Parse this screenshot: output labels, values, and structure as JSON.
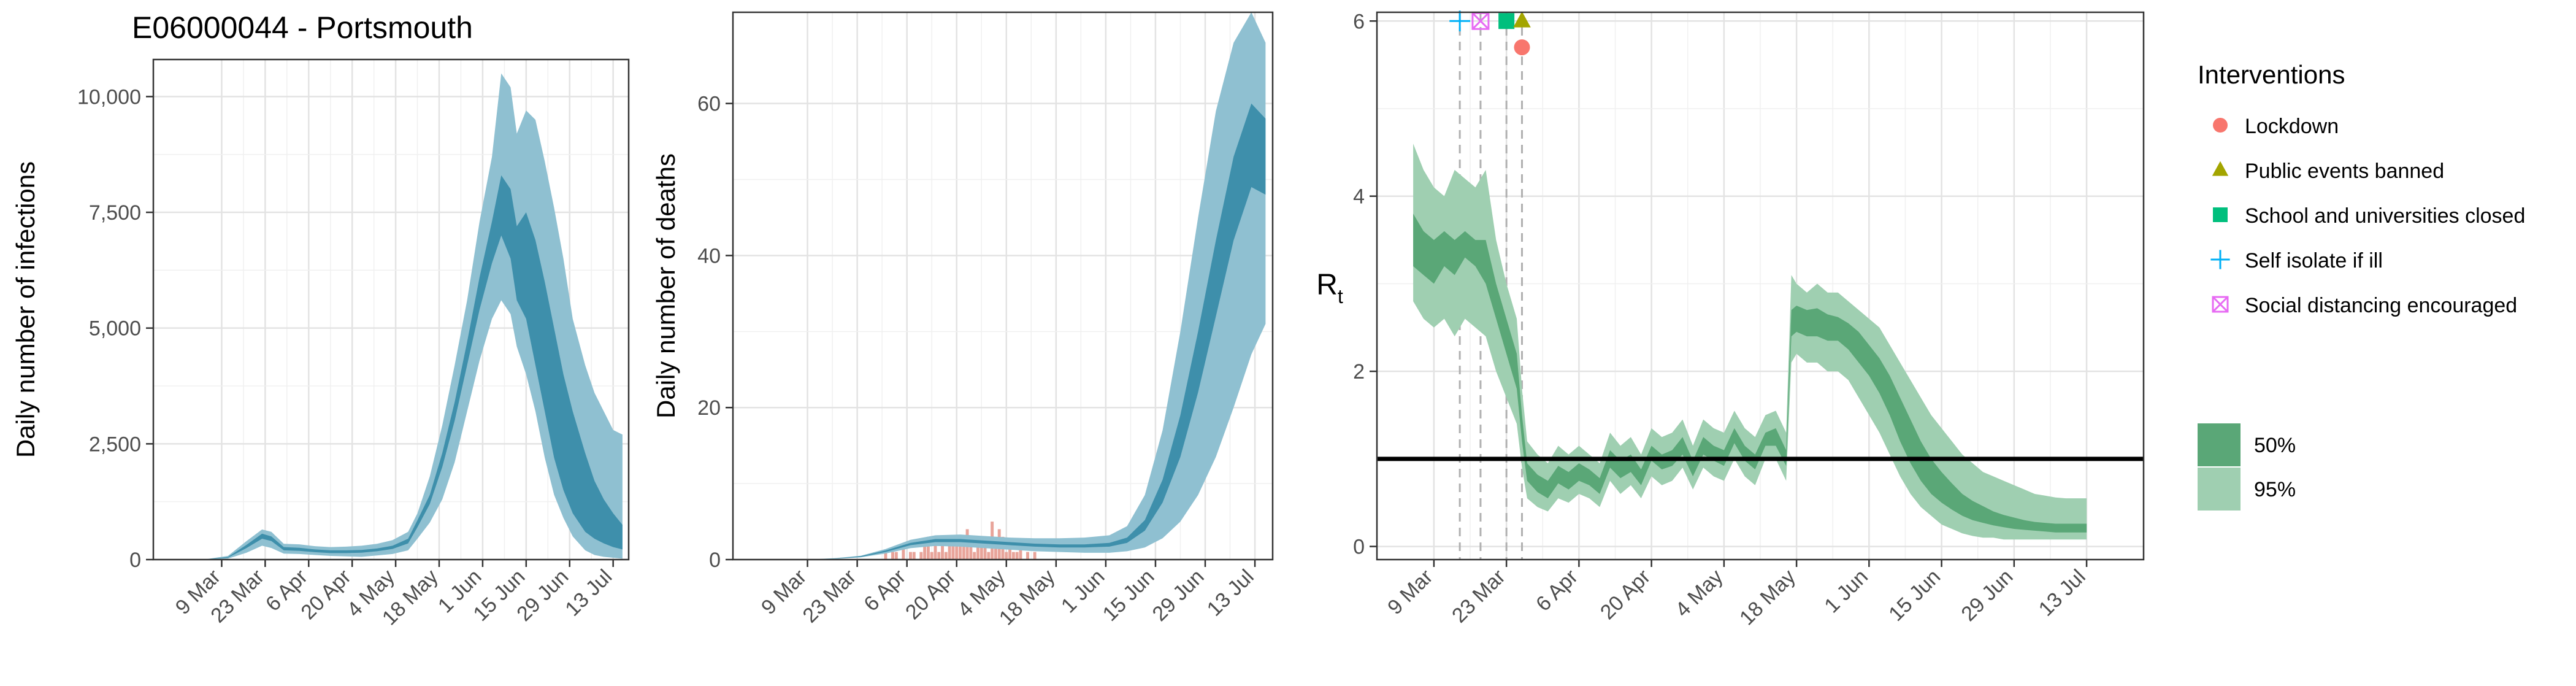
{
  "title": "E06000044 - Portsmouth",
  "colors": {
    "infections_outer": "#8fc0d1",
    "infections_inner": "#3e8fab",
    "deaths_bars": "#e8a49a",
    "rt_outer": "#9fcfb1",
    "rt_inner": "#5aa777",
    "rt_line": "#000000",
    "lockdown": "#F8766D",
    "public_events": "#A3A500",
    "schools": "#00BF7D",
    "self_isolate": "#00B0F6",
    "social_distancing": "#E76BF3"
  },
  "legend": {
    "interventions_title": "Interventions",
    "interventions": [
      {
        "label": "Lockdown",
        "shape": "circle",
        "color": "#F8766D"
      },
      {
        "label": "Public events banned",
        "shape": "triangle",
        "color": "#A3A500"
      },
      {
        "label": "School and universities closed",
        "shape": "square",
        "color": "#00BF7D"
      },
      {
        "label": "Self isolate if ill",
        "shape": "plus",
        "color": "#00B0F6"
      },
      {
        "label": "Social distancing encouraged",
        "shape": "boxx",
        "color": "#E76BF3"
      }
    ],
    "ci": [
      {
        "label": "50%",
        "color": "#5aa777"
      },
      {
        "label": "95%",
        "color": "#9fcfb1"
      }
    ]
  },
  "chart_data": [
    {
      "type": "area",
      "ylabel": "Daily number of infections",
      "x_ticks": [
        "9 Mar",
        "23 Mar",
        "6 Apr",
        "20 Apr",
        "4 May",
        "18 May",
        "1 Jun",
        "15 Jun",
        "29 Jun",
        "13 Jul"
      ],
      "y_ticks": [
        "0",
        "2,500",
        "5,000",
        "7,500",
        "10,000"
      ],
      "ylim": [
        0,
        10800
      ],
      "x_days": [
        -6,
        2,
        8,
        13,
        16,
        20,
        25,
        30,
        35,
        40,
        45,
        50,
        55,
        60,
        63,
        67,
        71,
        75,
        79,
        83,
        87,
        90,
        93,
        95,
        98,
        101,
        104,
        107,
        110,
        113,
        117,
        120,
        123,
        126,
        129
      ],
      "series": [
        {
          "name": "95%",
          "low": [
            0,
            20,
            150,
            300,
            250,
            130,
            120,
            100,
            80,
            70,
            60,
            90,
            120,
            200,
            450,
            800,
            1300,
            2100,
            3200,
            4300,
            5200,
            5600,
            5300,
            4600,
            4000,
            3200,
            2200,
            1400,
            900,
            500,
            200,
            100,
            60,
            40,
            20
          ],
          "high": [
            0,
            80,
            400,
            650,
            600,
            340,
            330,
            290,
            270,
            280,
            300,
            340,
            420,
            600,
            1000,
            1800,
            2900,
            4200,
            5600,
            7300,
            8700,
            10500,
            10200,
            9200,
            9700,
            9500,
            8600,
            7600,
            6500,
            5200,
            4200,
            3600,
            3200,
            2800,
            2700
          ]
        },
        {
          "name": "50%",
          "low": [
            0,
            40,
            250,
            450,
            400,
            200,
            190,
            160,
            140,
            140,
            150,
            180,
            230,
            350,
            700,
            1200,
            2000,
            3000,
            4200,
            5400,
            6400,
            7000,
            6500,
            5600,
            5200,
            4200,
            3200,
            2200,
            1500,
            1000,
            600,
            450,
            350,
            270,
            220
          ],
          "high": [
            0,
            55,
            320,
            560,
            500,
            270,
            255,
            220,
            200,
            200,
            210,
            240,
            300,
            450,
            850,
            1400,
            2300,
            3400,
            4700,
            6100,
            7300,
            8300,
            8000,
            7200,
            7500,
            6900,
            6000,
            5000,
            4000,
            3200,
            2300,
            1700,
            1300,
            1000,
            750
          ]
        }
      ]
    },
    {
      "type": "area",
      "ylabel": "Daily number of deaths",
      "x_ticks": [
        "9 Mar",
        "23 Mar",
        "6 Apr",
        "20 Apr",
        "4 May",
        "18 May",
        "1 Jun",
        "15 Jun",
        "29 Jun",
        "13 Jul"
      ],
      "y_ticks": [
        "0",
        "20",
        "40",
        "60"
      ],
      "ylim": [
        0,
        72
      ],
      "x_days": [
        -6,
        0,
        8,
        15,
        22,
        29,
        36,
        43,
        50,
        57,
        64,
        71,
        78,
        85,
        90,
        95,
        100,
        105,
        110,
        115,
        120,
        125,
        129
      ],
      "bars": {
        "x_days": [
          22,
          24,
          25,
          27,
          29,
          30,
          32,
          33,
          34,
          35,
          36,
          37,
          38,
          39,
          40,
          41,
          42,
          43,
          44,
          45,
          46,
          47,
          48,
          49,
          50,
          51,
          52,
          53,
          54,
          55,
          56,
          57,
          58,
          59,
          60,
          62,
          64
        ],
        "values": [
          1,
          1,
          1,
          2,
          1,
          1,
          1,
          2,
          3,
          1,
          2,
          1,
          3,
          1,
          3,
          2,
          2,
          3,
          2,
          4,
          2,
          1,
          3,
          2,
          2,
          1,
          5,
          2,
          4,
          3,
          1,
          2,
          1,
          1,
          2,
          1,
          1
        ]
      },
      "series": [
        {
          "name": "95%",
          "low": [
            0,
            0,
            0.1,
            0.3,
            0.8,
            1.5,
            1.8,
            1.7,
            1.5,
            1.3,
            1.1,
            1.0,
            0.9,
            0.9,
            1.1,
            1.6,
            2.8,
            5.0,
            8.5,
            13.5,
            20,
            27,
            31
          ],
          "high": [
            0,
            0,
            0.2,
            0.5,
            1.4,
            2.6,
            3.2,
            3.3,
            3.1,
            2.9,
            2.8,
            2.8,
            2.9,
            3.2,
            4.4,
            8.5,
            17,
            30,
            45,
            59,
            68,
            72,
            68
          ]
        },
        {
          "name": "50%",
          "low": [
            0,
            0,
            0.12,
            0.35,
            1.0,
            1.9,
            2.3,
            2.3,
            2.1,
            1.9,
            1.7,
            1.6,
            1.6,
            1.7,
            2.2,
            3.8,
            7.5,
            13.5,
            22,
            32,
            42,
            49,
            48
          ],
          "high": [
            0,
            0,
            0.15,
            0.45,
            1.2,
            2.2,
            2.7,
            2.7,
            2.5,
            2.3,
            2.1,
            2.0,
            2.0,
            2.2,
            2.9,
            5.2,
            10.5,
            19,
            30,
            42,
            53,
            60,
            58
          ]
        }
      ]
    },
    {
      "type": "area",
      "ylabel": "R",
      "ylabel_sub": "t",
      "x_ticks": [
        "9 Mar",
        "23 Mar",
        "6 Apr",
        "20 Apr",
        "4 May",
        "18 May",
        "1 Jun",
        "15 Jun",
        "29 Jun",
        "13 Jul"
      ],
      "y_ticks": [
        "0",
        "2",
        "4",
        "6"
      ],
      "ylim": [
        0,
        6.1
      ],
      "reference_line": 1,
      "intervention_days": [
        5,
        9,
        14,
        17,
        17
      ],
      "x_days": [
        -4,
        -2,
        0,
        2,
        4,
        6,
        8,
        10,
        12,
        14,
        16,
        17,
        18,
        20,
        22,
        24,
        26,
        28,
        30,
        32,
        34,
        36,
        38,
        40,
        42,
        44,
        46,
        48,
        50,
        52,
        54,
        56,
        58,
        60,
        62,
        64,
        66,
        68,
        69,
        70,
        72,
        74,
        76,
        78,
        80,
        82,
        84,
        86,
        88,
        90,
        92,
        94,
        96,
        98,
        100,
        102,
        104,
        106,
        108,
        110,
        112,
        114,
        116,
        118,
        120,
        122,
        124,
        126
      ],
      "series": [
        {
          "name": "95%",
          "low": [
            2.8,
            2.6,
            2.5,
            2.6,
            2.4,
            2.6,
            2.5,
            2.4,
            2.0,
            1.7,
            1.4,
            0.9,
            0.55,
            0.45,
            0.4,
            0.55,
            0.5,
            0.6,
            0.55,
            0.45,
            0.75,
            0.6,
            0.7,
            0.55,
            0.8,
            0.7,
            0.75,
            0.9,
            0.65,
            0.9,
            0.8,
            0.75,
            1.0,
            0.8,
            0.7,
            1.0,
            1.0,
            0.75,
            2.1,
            2.2,
            2.1,
            2.1,
            2.0,
            2.0,
            1.9,
            1.7,
            1.5,
            1.3,
            1.05,
            0.8,
            0.6,
            0.45,
            0.35,
            0.25,
            0.2,
            0.15,
            0.12,
            0.1,
            0.1,
            0.08,
            0.08,
            0.08,
            0.08,
            0.08,
            0.08,
            0.08,
            0.08,
            0.08
          ],
          "high": [
            4.6,
            4.3,
            4.1,
            4.0,
            4.3,
            4.2,
            4.1,
            4.3,
            3.5,
            3.0,
            2.6,
            1.8,
            1.2,
            1.05,
            0.95,
            1.15,
            1.05,
            1.15,
            1.05,
            0.95,
            1.3,
            1.15,
            1.25,
            1.05,
            1.35,
            1.25,
            1.3,
            1.45,
            1.15,
            1.45,
            1.35,
            1.3,
            1.55,
            1.35,
            1.25,
            1.5,
            1.55,
            1.3,
            3.1,
            3.0,
            2.9,
            3.0,
            2.9,
            2.9,
            2.8,
            2.7,
            2.6,
            2.5,
            2.3,
            2.1,
            1.9,
            1.7,
            1.5,
            1.35,
            1.2,
            1.05,
            0.95,
            0.85,
            0.8,
            0.75,
            0.7,
            0.65,
            0.6,
            0.58,
            0.56,
            0.55,
            0.55,
            0.55
          ]
        },
        {
          "name": "50%",
          "low": [
            3.2,
            3.1,
            3.0,
            3.2,
            3.1,
            3.3,
            3.2,
            3.0,
            2.6,
            2.2,
            1.8,
            1.2,
            0.75,
            0.62,
            0.55,
            0.72,
            0.65,
            0.75,
            0.7,
            0.6,
            0.9,
            0.78,
            0.85,
            0.7,
            0.98,
            0.88,
            0.92,
            1.05,
            0.8,
            1.05,
            0.98,
            0.92,
            1.18,
            0.98,
            0.88,
            1.15,
            1.15,
            0.92,
            2.4,
            2.45,
            2.4,
            2.4,
            2.35,
            2.35,
            2.25,
            2.1,
            1.95,
            1.75,
            1.5,
            1.2,
            0.95,
            0.75,
            0.6,
            0.5,
            0.42,
            0.35,
            0.3,
            0.27,
            0.24,
            0.22,
            0.2,
            0.19,
            0.18,
            0.17,
            0.16,
            0.16,
            0.16,
            0.16
          ],
          "high": [
            3.8,
            3.6,
            3.5,
            3.6,
            3.5,
            3.6,
            3.5,
            3.5,
            3.0,
            2.6,
            2.2,
            1.5,
            0.95,
            0.82,
            0.75,
            0.92,
            0.85,
            0.95,
            0.88,
            0.78,
            1.1,
            0.98,
            1.05,
            0.88,
            1.15,
            1.05,
            1.1,
            1.25,
            0.98,
            1.25,
            1.15,
            1.1,
            1.35,
            1.15,
            1.05,
            1.3,
            1.35,
            1.1,
            2.7,
            2.75,
            2.7,
            2.72,
            2.65,
            2.62,
            2.55,
            2.45,
            2.3,
            2.15,
            1.95,
            1.7,
            1.45,
            1.2,
            1.0,
            0.85,
            0.72,
            0.6,
            0.52,
            0.46,
            0.4,
            0.36,
            0.33,
            0.3,
            0.28,
            0.27,
            0.26,
            0.26,
            0.26,
            0.26
          ]
        }
      ]
    }
  ]
}
